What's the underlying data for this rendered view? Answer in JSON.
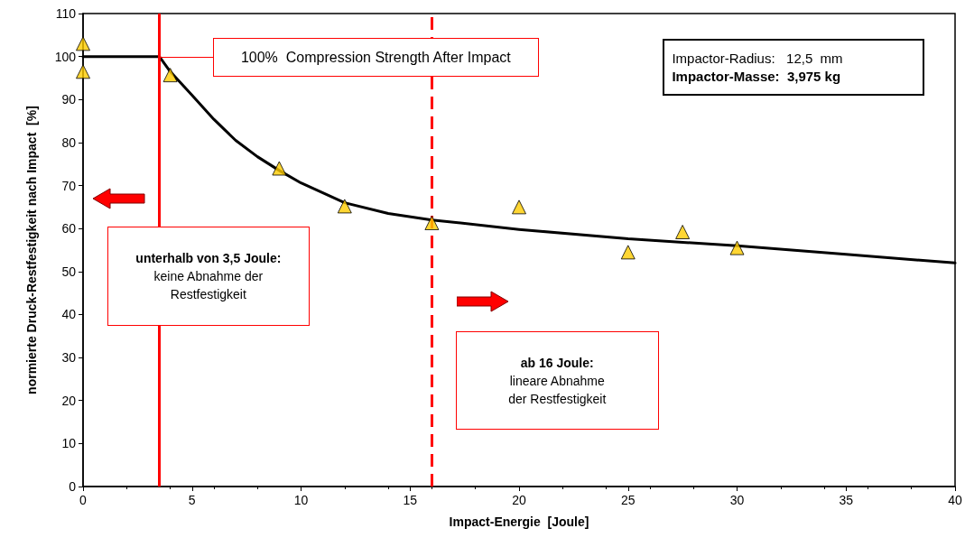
{
  "chart_data": {
    "type": "scatter",
    "xlabel": "Impact-Energie  [Joule]",
    "ylabel": "normierte Druck-Restfestigkeit nach Impact  [%]",
    "series": [
      {
        "color": "#ffcc00",
        "marker": "triangle",
        "x": [
          0,
          0,
          4,
          9,
          12,
          16,
          20,
          25,
          27.5,
          30
        ],
        "values": [
          103,
          96.5,
          95.7,
          74,
          65.2,
          61.3,
          65,
          54.5,
          59.2,
          55.5
        ]
      },
      {
        "type": "line",
        "color": "#000000",
        "marker": "none",
        "x": [
          0,
          3.5,
          4,
          5,
          6,
          7,
          8,
          9,
          10,
          12,
          14,
          16,
          20,
          25,
          30,
          35,
          40
        ],
        "values": [
          100,
          100,
          96.5,
          91,
          85.4,
          80.5,
          76.7,
          73.5,
          70.6,
          66,
          63.5,
          62,
          59.8,
          57.6,
          56,
          54,
          52
        ]
      }
    ],
    "xlim": [
      0,
      40
    ],
    "xticks": [
      0,
      5,
      10,
      15,
      20,
      25,
      30,
      35,
      40
    ],
    "ylim": [
      0,
      110
    ],
    "yticks": [
      0,
      10,
      20,
      30,
      40,
      50,
      60,
      70,
      80,
      90,
      100,
      110
    ],
    "grid": false,
    "ref_lines": [
      {
        "axis": "x",
        "value": 3.5,
        "color": "#ff0000",
        "line_style": "solid"
      },
      {
        "axis": "x",
        "value": 16,
        "color": "#ff0000",
        "line_style": "dashed"
      }
    ],
    "annotations": [
      "100%  Compression Strength After Impact",
      "unterhalb von 3,5 Joule:\nkeine Abnahme der\nRestfestigkeit",
      "ab 16 Joule:\nlineare Abnahme\nder Restfestigkeit",
      "Impactor-Radius:   12,5  mm\nImpactor-Masse:  3,975 kg"
    ]
  }
}
